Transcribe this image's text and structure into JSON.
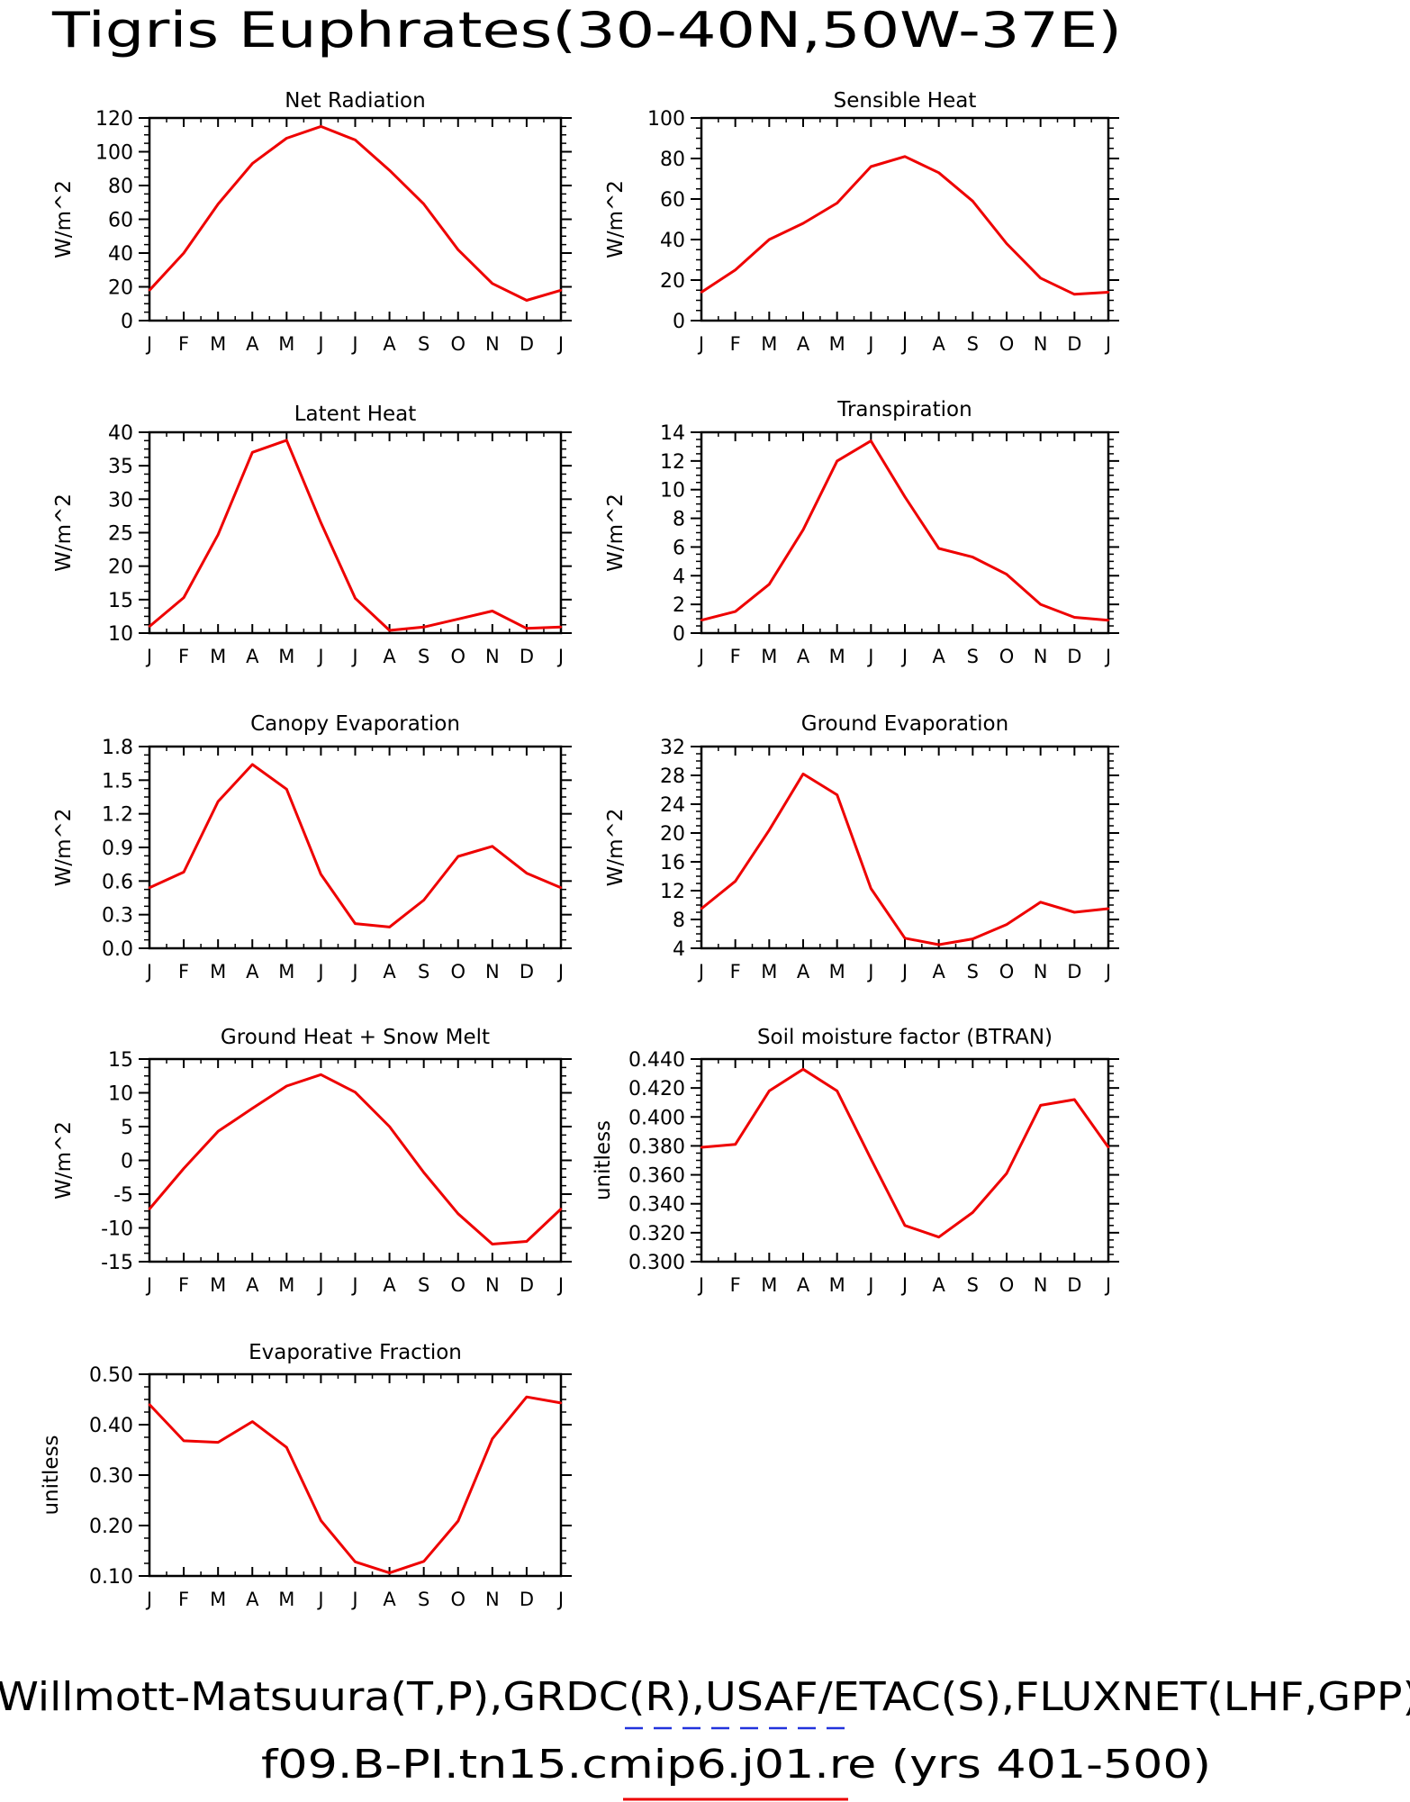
{
  "page": {
    "title": "Tigris Euphrates(30-40N,50W-37E)",
    "footer_obs": "Willmott-Matsuura(T,P),GRDC(R),USAF/ETAC(S),FLUXNET(LHF,GPP)",
    "footer_model": "f09.B-PI.tn15.cmip6.j01.re (yrs 401-500)",
    "colors": {
      "model_line": "#ee0000",
      "obs_dash": "#2233dd",
      "axis": "#000000"
    }
  },
  "chart_data": [
    {
      "type": "line",
      "title": "Net Radiation",
      "ylabel": "W/m^2",
      "categories": [
        "J",
        "F",
        "M",
        "A",
        "M",
        "J",
        "J",
        "A",
        "S",
        "O",
        "N",
        "D",
        "J"
      ],
      "ylim": [
        0,
        120
      ],
      "yticks": [
        0,
        20,
        40,
        60,
        80,
        100,
        120
      ],
      "ytick_labels": [
        "0",
        "20",
        "40",
        "60",
        "80",
        "100",
        "120"
      ],
      "values": [
        18,
        40,
        69,
        93,
        108,
        115,
        107,
        89,
        69,
        42,
        22,
        12,
        18
      ]
    },
    {
      "type": "line",
      "title": "Sensible Heat",
      "ylabel": "W/m^2",
      "categories": [
        "J",
        "F",
        "M",
        "A",
        "M",
        "J",
        "J",
        "A",
        "S",
        "O",
        "N",
        "D",
        "J"
      ],
      "ylim": [
        0,
        100
      ],
      "yticks": [
        0,
        20,
        40,
        60,
        80,
        100
      ],
      "ytick_labels": [
        "0",
        "20",
        "40",
        "60",
        "80",
        "100"
      ],
      "values": [
        14,
        25,
        40,
        48,
        58,
        76,
        81,
        73,
        59,
        38,
        21,
        13,
        14
      ]
    },
    {
      "type": "line",
      "title": "Latent Heat",
      "ylabel": "W/m^2",
      "categories": [
        "J",
        "F",
        "M",
        "A",
        "M",
        "J",
        "J",
        "A",
        "S",
        "O",
        "N",
        "D",
        "J"
      ],
      "ylim": [
        10,
        40
      ],
      "yticks": [
        10,
        15,
        20,
        25,
        30,
        35,
        40
      ],
      "ytick_labels": [
        "10",
        "15",
        "20",
        "25",
        "30",
        "35",
        "40"
      ],
      "values": [
        11,
        15.3,
        24.7,
        37,
        38.8,
        26.5,
        15.2,
        10.4,
        10.9,
        12.1,
        13.3,
        10.7,
        10.9
      ]
    },
    {
      "type": "line",
      "title": "Transpiration",
      "ylabel": "W/m^2",
      "categories": [
        "J",
        "F",
        "M",
        "A",
        "M",
        "J",
        "J",
        "A",
        "S",
        "O",
        "N",
        "D",
        "J"
      ],
      "ylim": [
        0,
        14
      ],
      "yticks": [
        0,
        2,
        4,
        6,
        8,
        10,
        12,
        14
      ],
      "ytick_labels": [
        "0",
        "2",
        "4",
        "6",
        "8",
        "10",
        "12",
        "14"
      ],
      "values": [
        0.9,
        1.5,
        3.4,
        7.2,
        12.0,
        13.4,
        9.5,
        5.9,
        5.3,
        4.1,
        2.0,
        1.1,
        0.9
      ]
    },
    {
      "type": "line",
      "title": "Canopy Evaporation",
      "ylabel": "W/m^2",
      "categories": [
        "J",
        "F",
        "M",
        "A",
        "M",
        "J",
        "J",
        "A",
        "S",
        "O",
        "N",
        "D",
        "J"
      ],
      "ylim": [
        0,
        1.8
      ],
      "yticks": [
        0,
        0.3,
        0.6,
        0.9,
        1.2,
        1.5,
        1.8
      ],
      "ytick_labels": [
        "0.0",
        "0.3",
        "0.6",
        "0.9",
        "1.2",
        "1.5",
        "1.8"
      ],
      "values": [
        0.54,
        0.68,
        1.31,
        1.64,
        1.42,
        0.66,
        0.22,
        0.19,
        0.43,
        0.82,
        0.91,
        0.67,
        0.54
      ]
    },
    {
      "type": "line",
      "title": "Ground Evaporation",
      "ylabel": "W/m^2",
      "categories": [
        "J",
        "F",
        "M",
        "A",
        "M",
        "J",
        "J",
        "A",
        "S",
        "O",
        "N",
        "D",
        "J"
      ],
      "ylim": [
        4,
        32
      ],
      "yticks": [
        4,
        8,
        12,
        16,
        20,
        24,
        28,
        32
      ],
      "ytick_labels": [
        "4",
        "8",
        "12",
        "16",
        "20",
        "24",
        "28",
        "32"
      ],
      "values": [
        9.5,
        13.3,
        20.4,
        28.2,
        25.3,
        12.3,
        5.4,
        4.5,
        5.3,
        7.3,
        10.4,
        9.0,
        9.5
      ]
    },
    {
      "type": "line",
      "title": "Ground Heat + Snow Melt",
      "ylabel": "W/m^2",
      "categories": [
        "J",
        "F",
        "M",
        "A",
        "M",
        "J",
        "J",
        "A",
        "S",
        "O",
        "N",
        "D",
        "J"
      ],
      "ylim": [
        -15,
        15
      ],
      "yticks": [
        -15,
        -10,
        -5,
        0,
        5,
        10,
        15
      ],
      "ytick_labels": [
        "-15",
        "-10",
        "-5",
        "0",
        "5",
        "10",
        "15"
      ],
      "values": [
        -7.2,
        -1.2,
        4.3,
        7.7,
        11.0,
        12.7,
        10.1,
        5.0,
        -1.8,
        -7.9,
        -12.4,
        -12.0,
        -7.2
      ]
    },
    {
      "type": "line",
      "title": "Soil moisture factor (BTRAN)",
      "ylabel": "unitless",
      "categories": [
        "J",
        "F",
        "M",
        "A",
        "M",
        "J",
        "J",
        "A",
        "S",
        "O",
        "N",
        "D",
        "J"
      ],
      "ylim": [
        0.3,
        0.44
      ],
      "yticks": [
        0.3,
        0.32,
        0.34,
        0.36,
        0.38,
        0.4,
        0.42,
        0.44
      ],
      "ytick_labels": [
        "0.300",
        "0.320",
        "0.340",
        "0.360",
        "0.380",
        "0.400",
        "0.420",
        "0.440"
      ],
      "values": [
        0.379,
        0.381,
        0.418,
        0.433,
        0.418,
        0.371,
        0.325,
        0.317,
        0.334,
        0.361,
        0.408,
        0.412,
        0.379
      ]
    },
    {
      "type": "line",
      "title": "Evaporative Fraction",
      "ylabel": "unitless",
      "categories": [
        "J",
        "F",
        "M",
        "A",
        "M",
        "J",
        "J",
        "A",
        "S",
        "O",
        "N",
        "D",
        "J"
      ],
      "ylim": [
        0.1,
        0.5
      ],
      "yticks": [
        0.1,
        0.2,
        0.3,
        0.4,
        0.5
      ],
      "ytick_labels": [
        "0.10",
        "0.20",
        "0.30",
        "0.40",
        "0.50"
      ],
      "values": [
        0.44,
        0.368,
        0.365,
        0.406,
        0.355,
        0.21,
        0.128,
        0.106,
        0.129,
        0.209,
        0.372,
        0.455,
        0.443
      ]
    }
  ]
}
